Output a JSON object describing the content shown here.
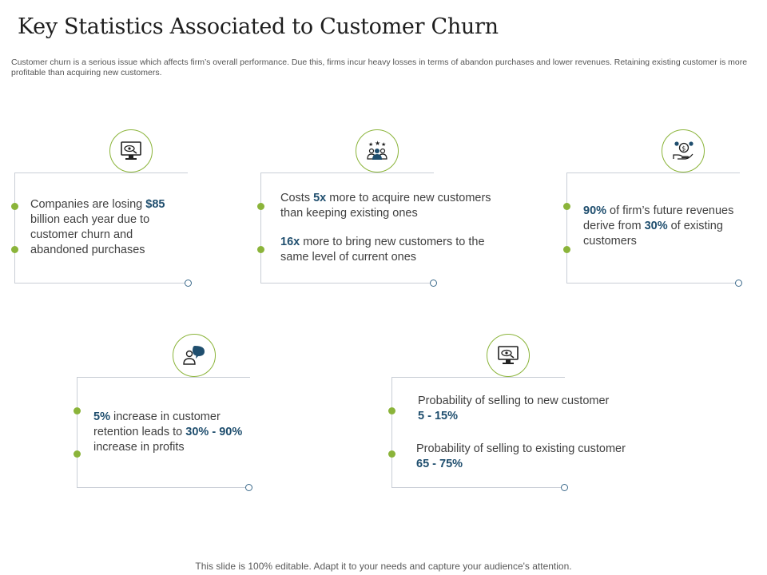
{
  "header": {
    "title": "Key Statistics Associated to Customer Churn",
    "subtitle": "Customer churn is a serious issue which affects firm’s overall performance. Due this, firms incur heavy losses in terms of abandon purchases and lower revenues. Retaining existing customer is more profitable than acquiring new customers."
  },
  "cards": [
    {
      "icon": "monitor-eye-icon",
      "points": [
        {
          "pre": "Companies are losing ",
          "hl": "$85",
          "post": " billion each year due to customer churn and abandoned purchases"
        }
      ]
    },
    {
      "icon": "team-rating-icon",
      "points": [
        {
          "pre": "Costs ",
          "hl": "5x",
          "post": " more to acquire new customers than keeping existing ones"
        },
        {
          "pre": "",
          "hl": "16x",
          "post": " more to bring new customers to the same level of current ones"
        }
      ]
    },
    {
      "icon": "hand-coin-icon",
      "points": [
        {
          "pre": "",
          "hl": "90%",
          "post": " of firm’s future revenues derive from "
        },
        {
          "pre": "",
          "hl": "30%",
          "post": " of existing customers"
        }
      ]
    },
    {
      "icon": "user-chat-icon",
      "points": [
        {
          "pre": "",
          "hl": "5%",
          "post": " increase in customer retention leads to "
        },
        {
          "pre": "",
          "hl": "30% - 90%",
          "post": " increase in profits"
        }
      ]
    },
    {
      "icon": "monitor-eye-icon",
      "points": [
        {
          "pre": "Probability of selling to new customer",
          "hl": "5 - 15%",
          "post": ""
        },
        {
          "pre": "Probability of selling to existing customer",
          "hl": "65 - 75%",
          "post": ""
        }
      ]
    }
  ],
  "footer": {
    "text": "This slide is 100% editable. Adapt it to your needs and capture your audience's attention."
  },
  "colors": {
    "accent_green": "#8bb43a",
    "highlight_blue": "#1f4e6e",
    "line_gray": "#c9ced6"
  }
}
